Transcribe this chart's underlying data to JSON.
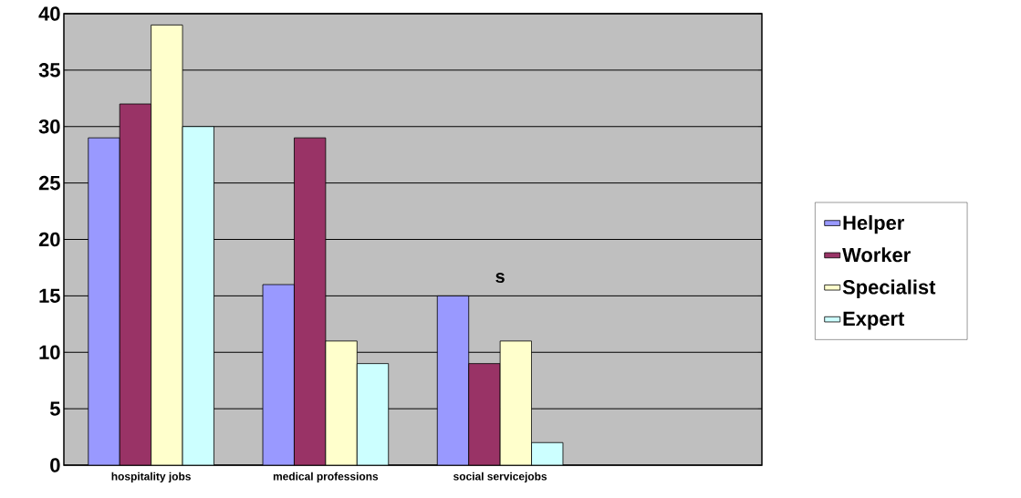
{
  "chart_data": {
    "type": "bar",
    "categories": [
      "hospitality jobs",
      "medical professions",
      "social servicejobs",
      null
    ],
    "series": [
      {
        "name": "Helper",
        "color": "#9999ff",
        "values": [
          29,
          16,
          15,
          null
        ]
      },
      {
        "name": "Worker",
        "color": "#993366",
        "values": [
          32,
          29,
          9,
          null
        ]
      },
      {
        "name": "Specialist",
        "color": "#ffffcc",
        "values": [
          39,
          11,
          11,
          null
        ]
      },
      {
        "name": "Expert",
        "color": "#ccffff",
        "values": [
          30,
          9,
          2,
          null
        ]
      }
    ],
    "ylim": [
      0,
      40
    ],
    "yticks": [
      0,
      5,
      10,
      15,
      20,
      25,
      30,
      35,
      40
    ],
    "grid": "y",
    "legend": "right",
    "annotations": [
      "s"
    ]
  }
}
